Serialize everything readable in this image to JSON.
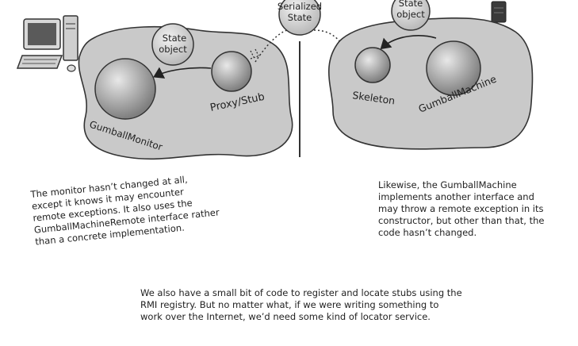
{
  "diagram": {
    "serialized_label": [
      "Serialized",
      "State"
    ],
    "client": {
      "state_label": [
        "State",
        "object"
      ],
      "monitor_label": "GumballMonitor",
      "proxy_label": "Proxy/Stub"
    },
    "server": {
      "state_label": [
        "State",
        "object"
      ],
      "skeleton_label": "Skeleton",
      "machine_label": "GumballMachine"
    }
  },
  "notes": {
    "left": [
      "The monitor hasn’t changed at all,",
      "except it knows it may encounter",
      "remote exceptions.  It also uses the",
      "GumballMachineRemote interface rather",
      "than a concrete implementation."
    ],
    "right": [
      "Likewise, the GumballMachine",
      "implements another interface and",
      "may throw a remote exception in its",
      "constructor, but other than that, the",
      "code hasn’t changed."
    ],
    "bottom": [
      "We also have a small bit of code to register and locate stubs using the",
      "RMI registry.  But no matter what, if we were writing something to",
      "work over the Internet, we’d need some kind of locator service."
    ]
  },
  "colors": {
    "blob_fill": "#c9c9c9",
    "sphere_fill": "#b0b0b0",
    "ink": "#222222"
  }
}
